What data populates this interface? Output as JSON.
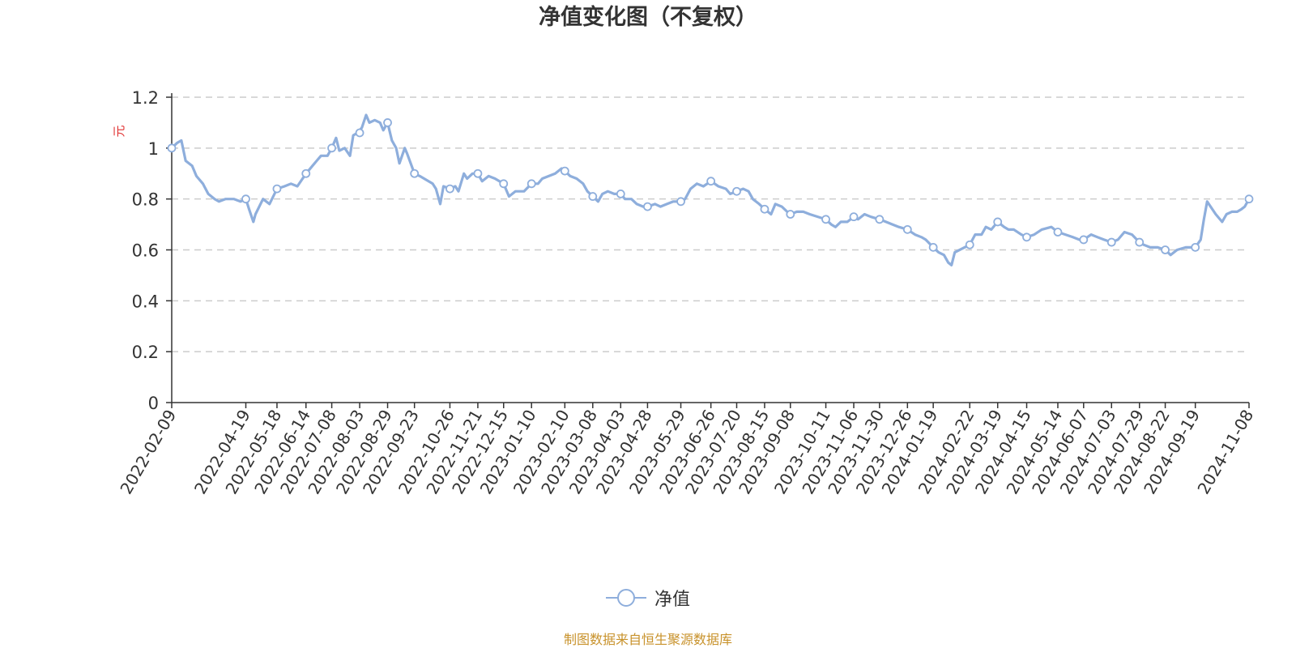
{
  "chart_data": {
    "type": "line",
    "title": "净值变化图（不复权）",
    "ylabel": "元",
    "xlabel": "",
    "ylim": [
      0,
      1.2
    ],
    "yticks": [
      "0",
      "0.2",
      "0.4",
      "0.6",
      "0.8",
      "1",
      "1.2"
    ],
    "grid": true,
    "legend_position": "bottom",
    "line_color": "#8eaedc",
    "ylabel_color": "#e03030",
    "x_tick_labels": [
      "2022-02-09",
      "2022-04-19",
      "2022-05-18",
      "2022-06-14",
      "2022-07-08",
      "2022-08-03",
      "2022-08-29",
      "2022-09-23",
      "2022-10-26",
      "2022-11-21",
      "2022-12-15",
      "2023-01-10",
      "2023-02-10",
      "2023-03-08",
      "2023-04-03",
      "2023-04-28",
      "2023-05-29",
      "2023-06-26",
      "2023-07-20",
      "2023-08-15",
      "2023-09-08",
      "2023-10-11",
      "2023-11-06",
      "2023-11-30",
      "2023-12-26",
      "2024-01-19",
      "2024-02-22",
      "2024-03-19",
      "2024-04-15",
      "2024-05-14",
      "2024-06-07",
      "2024-07-03",
      "2024-07-29",
      "2024-08-22",
      "2024-09-19",
      "2024-11-08"
    ],
    "series": [
      {
        "name": "净值",
        "points": [
          [
            "2022-02-09",
            1.0
          ],
          [
            "2022-02-14",
            1.02
          ],
          [
            "2022-02-18",
            1.03
          ],
          [
            "2022-02-22",
            0.95
          ],
          [
            "2022-02-28",
            0.93
          ],
          [
            "2022-03-04",
            0.89
          ],
          [
            "2022-03-10",
            0.86
          ],
          [
            "2022-03-15",
            0.82
          ],
          [
            "2022-03-21",
            0.8
          ],
          [
            "2022-03-25",
            0.79
          ],
          [
            "2022-03-31",
            0.8
          ],
          [
            "2022-04-08",
            0.8
          ],
          [
            "2022-04-14",
            0.79
          ],
          [
            "2022-04-19",
            0.8
          ],
          [
            "2022-04-22",
            0.76
          ],
          [
            "2022-04-26",
            0.71
          ],
          [
            "2022-04-28",
            0.74
          ],
          [
            "2022-05-05",
            0.8
          ],
          [
            "2022-05-11",
            0.78
          ],
          [
            "2022-05-18",
            0.84
          ],
          [
            "2022-05-25",
            0.85
          ],
          [
            "2022-05-31",
            0.86
          ],
          [
            "2022-06-06",
            0.85
          ],
          [
            "2022-06-14",
            0.9
          ],
          [
            "2022-06-20",
            0.93
          ],
          [
            "2022-06-24",
            0.95
          ],
          [
            "2022-06-28",
            0.97
          ],
          [
            "2022-07-04",
            0.97
          ],
          [
            "2022-07-08",
            1.0
          ],
          [
            "2022-07-12",
            1.04
          ],
          [
            "2022-07-15",
            0.99
          ],
          [
            "2022-07-20",
            1.0
          ],
          [
            "2022-07-25",
            0.97
          ],
          [
            "2022-07-28",
            1.05
          ],
          [
            "2022-08-01",
            1.06
          ],
          [
            "2022-08-05",
            1.08
          ],
          [
            "2022-08-09",
            1.13
          ],
          [
            "2022-08-12",
            1.1
          ],
          [
            "2022-08-17",
            1.11
          ],
          [
            "2022-08-22",
            1.1
          ],
          [
            "2022-08-25",
            1.07
          ],
          [
            "2022-08-29",
            1.1
          ],
          [
            "2022-09-02",
            1.03
          ],
          [
            "2022-09-06",
            1.0
          ],
          [
            "2022-09-09",
            0.94
          ],
          [
            "2022-09-14",
            1.0
          ],
          [
            "2022-09-16",
            0.98
          ],
          [
            "2022-09-23",
            0.9
          ],
          [
            "2022-09-28",
            0.89
          ],
          [
            "2022-10-10",
            0.86
          ],
          [
            "2022-10-13",
            0.84
          ],
          [
            "2022-10-17",
            0.78
          ],
          [
            "2022-10-20",
            0.85
          ],
          [
            "2022-10-26",
            0.84
          ],
          [
            "2022-10-31",
            0.85
          ],
          [
            "2022-11-03",
            0.83
          ],
          [
            "2022-11-08",
            0.9
          ],
          [
            "2022-11-11",
            0.88
          ],
          [
            "2022-11-16",
            0.9
          ],
          [
            "2022-11-21",
            0.9
          ],
          [
            "2022-11-25",
            0.87
          ],
          [
            "2022-12-01",
            0.89
          ],
          [
            "2022-12-07",
            0.88
          ],
          [
            "2022-12-15",
            0.86
          ],
          [
            "2022-12-20",
            0.81
          ],
          [
            "2022-12-26",
            0.83
          ],
          [
            "2023-01-03",
            0.83
          ],
          [
            "2023-01-10",
            0.86
          ],
          [
            "2023-01-16",
            0.86
          ],
          [
            "2023-01-20",
            0.88
          ],
          [
            "2023-02-01",
            0.9
          ],
          [
            "2023-02-07",
            0.92
          ],
          [
            "2023-02-10",
            0.91
          ],
          [
            "2023-02-15",
            0.89
          ],
          [
            "2023-02-21",
            0.88
          ],
          [
            "2023-02-27",
            0.86
          ],
          [
            "2023-03-03",
            0.83
          ],
          [
            "2023-03-08",
            0.81
          ],
          [
            "2023-03-13",
            0.79
          ],
          [
            "2023-03-17",
            0.82
          ],
          [
            "2023-03-22",
            0.83
          ],
          [
            "2023-03-28",
            0.82
          ],
          [
            "2023-04-03",
            0.82
          ],
          [
            "2023-04-07",
            0.8
          ],
          [
            "2023-04-13",
            0.8
          ],
          [
            "2023-04-18",
            0.78
          ],
          [
            "2023-04-24",
            0.77
          ],
          [
            "2023-04-28",
            0.77
          ],
          [
            "2023-05-05",
            0.78
          ],
          [
            "2023-05-10",
            0.77
          ],
          [
            "2023-05-16",
            0.78
          ],
          [
            "2023-05-22",
            0.79
          ],
          [
            "2023-05-29",
            0.79
          ],
          [
            "2023-06-02",
            0.8
          ],
          [
            "2023-06-07",
            0.84
          ],
          [
            "2023-06-13",
            0.86
          ],
          [
            "2023-06-19",
            0.85
          ],
          [
            "2023-06-26",
            0.87
          ],
          [
            "2023-07-03",
            0.85
          ],
          [
            "2023-07-10",
            0.84
          ],
          [
            "2023-07-14",
            0.82
          ],
          [
            "2023-07-20",
            0.83
          ],
          [
            "2023-07-26",
            0.84
          ],
          [
            "2023-07-31",
            0.83
          ],
          [
            "2023-08-04",
            0.8
          ],
          [
            "2023-08-10",
            0.78
          ],
          [
            "2023-08-15",
            0.76
          ],
          [
            "2023-08-21",
            0.74
          ],
          [
            "2023-08-25",
            0.78
          ],
          [
            "2023-08-31",
            0.77
          ],
          [
            "2023-09-05",
            0.75
          ],
          [
            "2023-09-08",
            0.74
          ],
          [
            "2023-09-14",
            0.75
          ],
          [
            "2023-09-20",
            0.75
          ],
          [
            "2023-09-26",
            0.74
          ],
          [
            "2023-10-11",
            0.72
          ],
          [
            "2023-10-16",
            0.7
          ],
          [
            "2023-10-20",
            0.69
          ],
          [
            "2023-10-25",
            0.71
          ],
          [
            "2023-10-31",
            0.71
          ],
          [
            "2023-11-06",
            0.73
          ],
          [
            "2023-11-10",
            0.72
          ],
          [
            "2023-11-16",
            0.74
          ],
          [
            "2023-11-22",
            0.73
          ],
          [
            "2023-11-30",
            0.72
          ],
          [
            "2023-12-06",
            0.71
          ],
          [
            "2023-12-12",
            0.7
          ],
          [
            "2023-12-18",
            0.69
          ],
          [
            "2023-12-26",
            0.68
          ],
          [
            "2024-01-02",
            0.66
          ],
          [
            "2024-01-08",
            0.65
          ],
          [
            "2024-01-12",
            0.64
          ],
          [
            "2024-01-19",
            0.61
          ],
          [
            "2024-01-24",
            0.59
          ],
          [
            "2024-01-29",
            0.58
          ],
          [
            "2024-02-02",
            0.55
          ],
          [
            "2024-02-05",
            0.54
          ],
          [
            "2024-02-08",
            0.59
          ],
          [
            "2024-02-22",
            0.62
          ],
          [
            "2024-02-27",
            0.66
          ],
          [
            "2024-03-04",
            0.66
          ],
          [
            "2024-03-08",
            0.69
          ],
          [
            "2024-03-13",
            0.68
          ],
          [
            "2024-03-19",
            0.71
          ],
          [
            "2024-03-25",
            0.69
          ],
          [
            "2024-03-29",
            0.68
          ],
          [
            "2024-04-03",
            0.68
          ],
          [
            "2024-04-10",
            0.66
          ],
          [
            "2024-04-15",
            0.65
          ],
          [
            "2024-04-22",
            0.66
          ],
          [
            "2024-04-29",
            0.68
          ],
          [
            "2024-05-08",
            0.69
          ],
          [
            "2024-05-14",
            0.67
          ],
          [
            "2024-05-21",
            0.66
          ],
          [
            "2024-05-28",
            0.65
          ],
          [
            "2024-06-03",
            0.64
          ],
          [
            "2024-06-07",
            0.64
          ],
          [
            "2024-06-14",
            0.66
          ],
          [
            "2024-06-20",
            0.65
          ],
          [
            "2024-06-26",
            0.64
          ],
          [
            "2024-07-03",
            0.63
          ],
          [
            "2024-07-09",
            0.64
          ],
          [
            "2024-07-15",
            0.67
          ],
          [
            "2024-07-22",
            0.66
          ],
          [
            "2024-07-29",
            0.63
          ],
          [
            "2024-08-02",
            0.62
          ],
          [
            "2024-08-08",
            0.61
          ],
          [
            "2024-08-15",
            0.61
          ],
          [
            "2024-08-22",
            0.6
          ],
          [
            "2024-08-27",
            0.58
          ],
          [
            "2024-09-02",
            0.6
          ],
          [
            "2024-09-10",
            0.61
          ],
          [
            "2024-09-19",
            0.61
          ],
          [
            "2024-09-24",
            0.64
          ],
          [
            "2024-09-27",
            0.72
          ],
          [
            "2024-09-30",
            0.79
          ],
          [
            "2024-10-08",
            0.74
          ],
          [
            "2024-10-14",
            0.71
          ],
          [
            "2024-10-18",
            0.74
          ],
          [
            "2024-10-23",
            0.75
          ],
          [
            "2024-10-28",
            0.75
          ],
          [
            "2024-11-01",
            0.76
          ],
          [
            "2024-11-04",
            0.77
          ],
          [
            "2024-11-08",
            0.8
          ]
        ]
      }
    ]
  },
  "legend": {
    "label": "净值"
  },
  "footer": {
    "source": "制图数据来自恒生聚源数据库"
  }
}
